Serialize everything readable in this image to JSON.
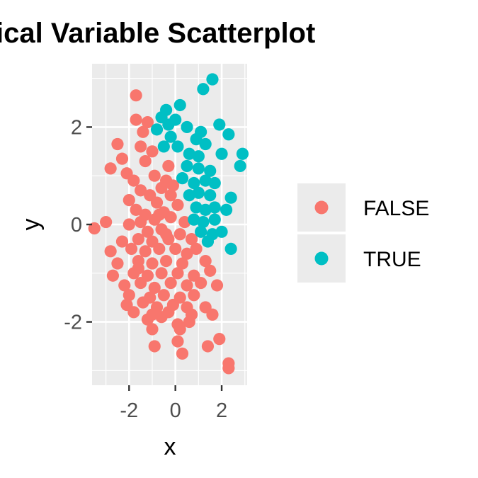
{
  "chart_data": {
    "type": "scatter",
    "title": "ical Variable Scatterplot",
    "xlabel": "x",
    "ylabel": "y",
    "xlim": [
      -3.6,
      3.1
    ],
    "ylim": [
      -3.3,
      3.3
    ],
    "x_ticks": [
      -2,
      0,
      2
    ],
    "x_tick_labels": [
      "-2",
      "0",
      "2"
    ],
    "y_ticks": [
      -2,
      0,
      2
    ],
    "y_tick_labels": [
      "-2",
      "0",
      "2"
    ],
    "grid": true,
    "legend_position": "right",
    "series": [
      {
        "name": "FALSE",
        "color": "#F8766D",
        "points": [
          [
            -1.7,
            2.65
          ],
          [
            -1.7,
            2.15
          ],
          [
            -1.2,
            2.1
          ],
          [
            -1.4,
            1.9
          ],
          [
            -2.5,
            1.65
          ],
          [
            -1.5,
            1.6
          ],
          [
            -1.0,
            1.5
          ],
          [
            -2.3,
            1.35
          ],
          [
            -1.3,
            1.3
          ],
          [
            -2.8,
            1.15
          ],
          [
            -2.1,
            1.05
          ],
          [
            -0.3,
            1.2
          ],
          [
            -1.8,
            0.9
          ],
          [
            -0.9,
            1.0
          ],
          [
            -0.4,
            0.9
          ],
          [
            -1.5,
            0.7
          ],
          [
            -2.0,
            0.5
          ],
          [
            -1.1,
            0.6
          ],
          [
            -0.6,
            0.75
          ],
          [
            -0.2,
            0.6
          ],
          [
            -1.7,
            0.3
          ],
          [
            -0.8,
            0.45
          ],
          [
            0.1,
            0.4
          ],
          [
            -1.3,
            0.2
          ],
          [
            -0.5,
            0.25
          ],
          [
            -3.5,
            -0.08
          ],
          [
            -3.0,
            0.05
          ],
          [
            -2.0,
            0.0
          ],
          [
            -1.5,
            0.05
          ],
          [
            -0.9,
            0.1
          ],
          [
            -0.2,
            0.15
          ],
          [
            0.4,
            0.05
          ],
          [
            -1.2,
            -0.15
          ],
          [
            -0.6,
            -0.1
          ],
          [
            0.2,
            -0.2
          ],
          [
            -2.3,
            -0.35
          ],
          [
            -1.6,
            -0.3
          ],
          [
            -1.0,
            -0.35
          ],
          [
            -0.3,
            -0.3
          ],
          [
            0.7,
            -0.3
          ],
          [
            -2.8,
            -0.55
          ],
          [
            -1.9,
            -0.5
          ],
          [
            -1.3,
            -0.55
          ],
          [
            -0.7,
            -0.5
          ],
          [
            0.0,
            -0.5
          ],
          [
            0.9,
            -0.5
          ],
          [
            -2.5,
            -0.8
          ],
          [
            -1.6,
            -0.75
          ],
          [
            -1.0,
            -0.8
          ],
          [
            -0.4,
            -0.75
          ],
          [
            0.3,
            -0.8
          ],
          [
            1.3,
            -0.75
          ],
          [
            -1.8,
            -1.0
          ],
          [
            -1.2,
            -1.05
          ],
          [
            -0.6,
            -1.0
          ],
          [
            0.1,
            -1.0
          ],
          [
            0.8,
            -1.05
          ],
          [
            1.5,
            -0.95
          ],
          [
            -2.7,
            -1.05
          ],
          [
            -2.2,
            -1.25
          ],
          [
            -1.5,
            -1.2
          ],
          [
            -0.9,
            -1.3
          ],
          [
            -0.2,
            -1.2
          ],
          [
            0.5,
            -1.25
          ],
          [
            1.1,
            -1.2
          ],
          [
            1.8,
            -1.25
          ],
          [
            -2.0,
            -1.45
          ],
          [
            -1.1,
            -1.5
          ],
          [
            -0.5,
            -1.45
          ],
          [
            0.2,
            -1.5
          ],
          [
            0.8,
            -1.45
          ],
          [
            -2.1,
            -1.65
          ],
          [
            -1.4,
            -1.6
          ],
          [
            -0.8,
            -1.7
          ],
          [
            -0.1,
            -1.65
          ],
          [
            0.5,
            -1.7
          ],
          [
            1.3,
            -1.7
          ],
          [
            -1.8,
            -1.8
          ],
          [
            -1.0,
            -1.85
          ],
          [
            -0.3,
            -1.8
          ],
          [
            0.7,
            -1.85
          ],
          [
            1.6,
            -1.85
          ],
          [
            -1.2,
            -1.95
          ],
          [
            -0.6,
            -1.9
          ],
          [
            0.1,
            -2.05
          ],
          [
            0.6,
            -2.0
          ],
          [
            -1.0,
            -2.15
          ],
          [
            0.2,
            -2.15
          ],
          [
            -0.9,
            -2.5
          ],
          [
            0.1,
            -2.4
          ],
          [
            0.3,
            -2.65
          ],
          [
            1.4,
            -2.5
          ],
          [
            1.9,
            -2.35
          ],
          [
            2.3,
            -2.85
          ],
          [
            2.3,
            -2.95
          ],
          [
            -0.7,
            0.2
          ],
          [
            -0.4,
            -0.2
          ],
          [
            0.5,
            -0.6
          ],
          [
            -0.1,
            0.8
          ],
          [
            -1.6,
            -0.9
          ]
        ]
      },
      {
        "name": "TRUE",
        "color": "#00BFC4",
        "points": [
          [
            1.6,
            2.98
          ],
          [
            1.2,
            2.78
          ],
          [
            -0.4,
            2.35
          ],
          [
            0.2,
            2.45
          ],
          [
            -0.6,
            2.2
          ],
          [
            0.0,
            2.15
          ],
          [
            -0.3,
            2.05
          ],
          [
            0.5,
            2.0
          ],
          [
            -0.8,
            1.95
          ],
          [
            -0.2,
            1.8
          ],
          [
            0.9,
            1.75
          ],
          [
            1.1,
            1.9
          ],
          [
            1.9,
            2.05
          ],
          [
            2.3,
            1.85
          ],
          [
            1.3,
            1.65
          ],
          [
            -0.5,
            1.6
          ],
          [
            0.1,
            1.6
          ],
          [
            0.6,
            1.45
          ],
          [
            1.0,
            1.4
          ],
          [
            2.0,
            1.45
          ],
          [
            2.9,
            1.45
          ],
          [
            2.8,
            1.2
          ],
          [
            0.5,
            1.2
          ],
          [
            1.0,
            1.15
          ],
          [
            1.5,
            1.1
          ],
          [
            0.3,
            0.95
          ],
          [
            0.8,
            0.85
          ],
          [
            1.3,
            0.9
          ],
          [
            1.7,
            0.85
          ],
          [
            0.6,
            0.6
          ],
          [
            1.0,
            0.65
          ],
          [
            1.5,
            0.6
          ],
          [
            2.4,
            0.55
          ],
          [
            0.9,
            0.35
          ],
          [
            1.3,
            0.3
          ],
          [
            1.7,
            0.35
          ],
          [
            2.2,
            0.3
          ],
          [
            0.8,
            0.1
          ],
          [
            1.2,
            0.05
          ],
          [
            1.7,
            0.1
          ],
          [
            1.1,
            -0.15
          ],
          [
            1.6,
            -0.2
          ],
          [
            2.0,
            -0.15
          ],
          [
            1.4,
            -0.35
          ],
          [
            2.4,
            -0.5
          ]
        ]
      }
    ]
  }
}
